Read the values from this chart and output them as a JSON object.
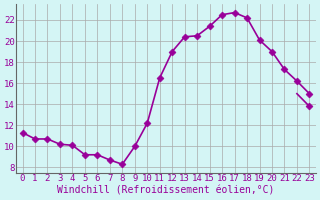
{
  "x": [
    0,
    1,
    2,
    3,
    4,
    5,
    6,
    7,
    8,
    9,
    10,
    11,
    12,
    13,
    14,
    15,
    16,
    17,
    18,
    19,
    20,
    21,
    22,
    23
  ],
  "y": [
    11.3,
    10.7,
    10.7,
    10.2,
    10.1,
    9.2,
    9.2,
    8.7,
    8.3,
    10.0,
    12.2,
    16.5,
    19.0,
    20.4,
    20.5,
    21.4,
    22.5,
    22.7,
    22.2,
    20.1,
    19.0,
    17.3,
    16.2,
    15.0
  ],
  "y_last": 13.8,
  "xlim": [
    -0.5,
    23.5
  ],
  "ylim": [
    7.5,
    23.5
  ],
  "yticks": [
    8,
    10,
    12,
    14,
    16,
    18,
    20,
    22
  ],
  "xticks": [
    0,
    1,
    2,
    3,
    4,
    5,
    6,
    7,
    8,
    9,
    10,
    11,
    12,
    13,
    14,
    15,
    16,
    17,
    18,
    19,
    20,
    21,
    22,
    23
  ],
  "xlabel": "Windchill (Refroidissement éolien,°C)",
  "line_color": "#990099",
  "marker_color": "#990099",
  "bg_color": "#d4f5f5",
  "grid_color": "#aaaaaa",
  "tick_label_color": "#990099",
  "xlabel_color": "#990099",
  "ylabel_color": "#990099",
  "xlabel_fontsize": 7,
  "tick_fontsize": 6.5,
  "line_width": 1.2,
  "marker_size": 3.5
}
